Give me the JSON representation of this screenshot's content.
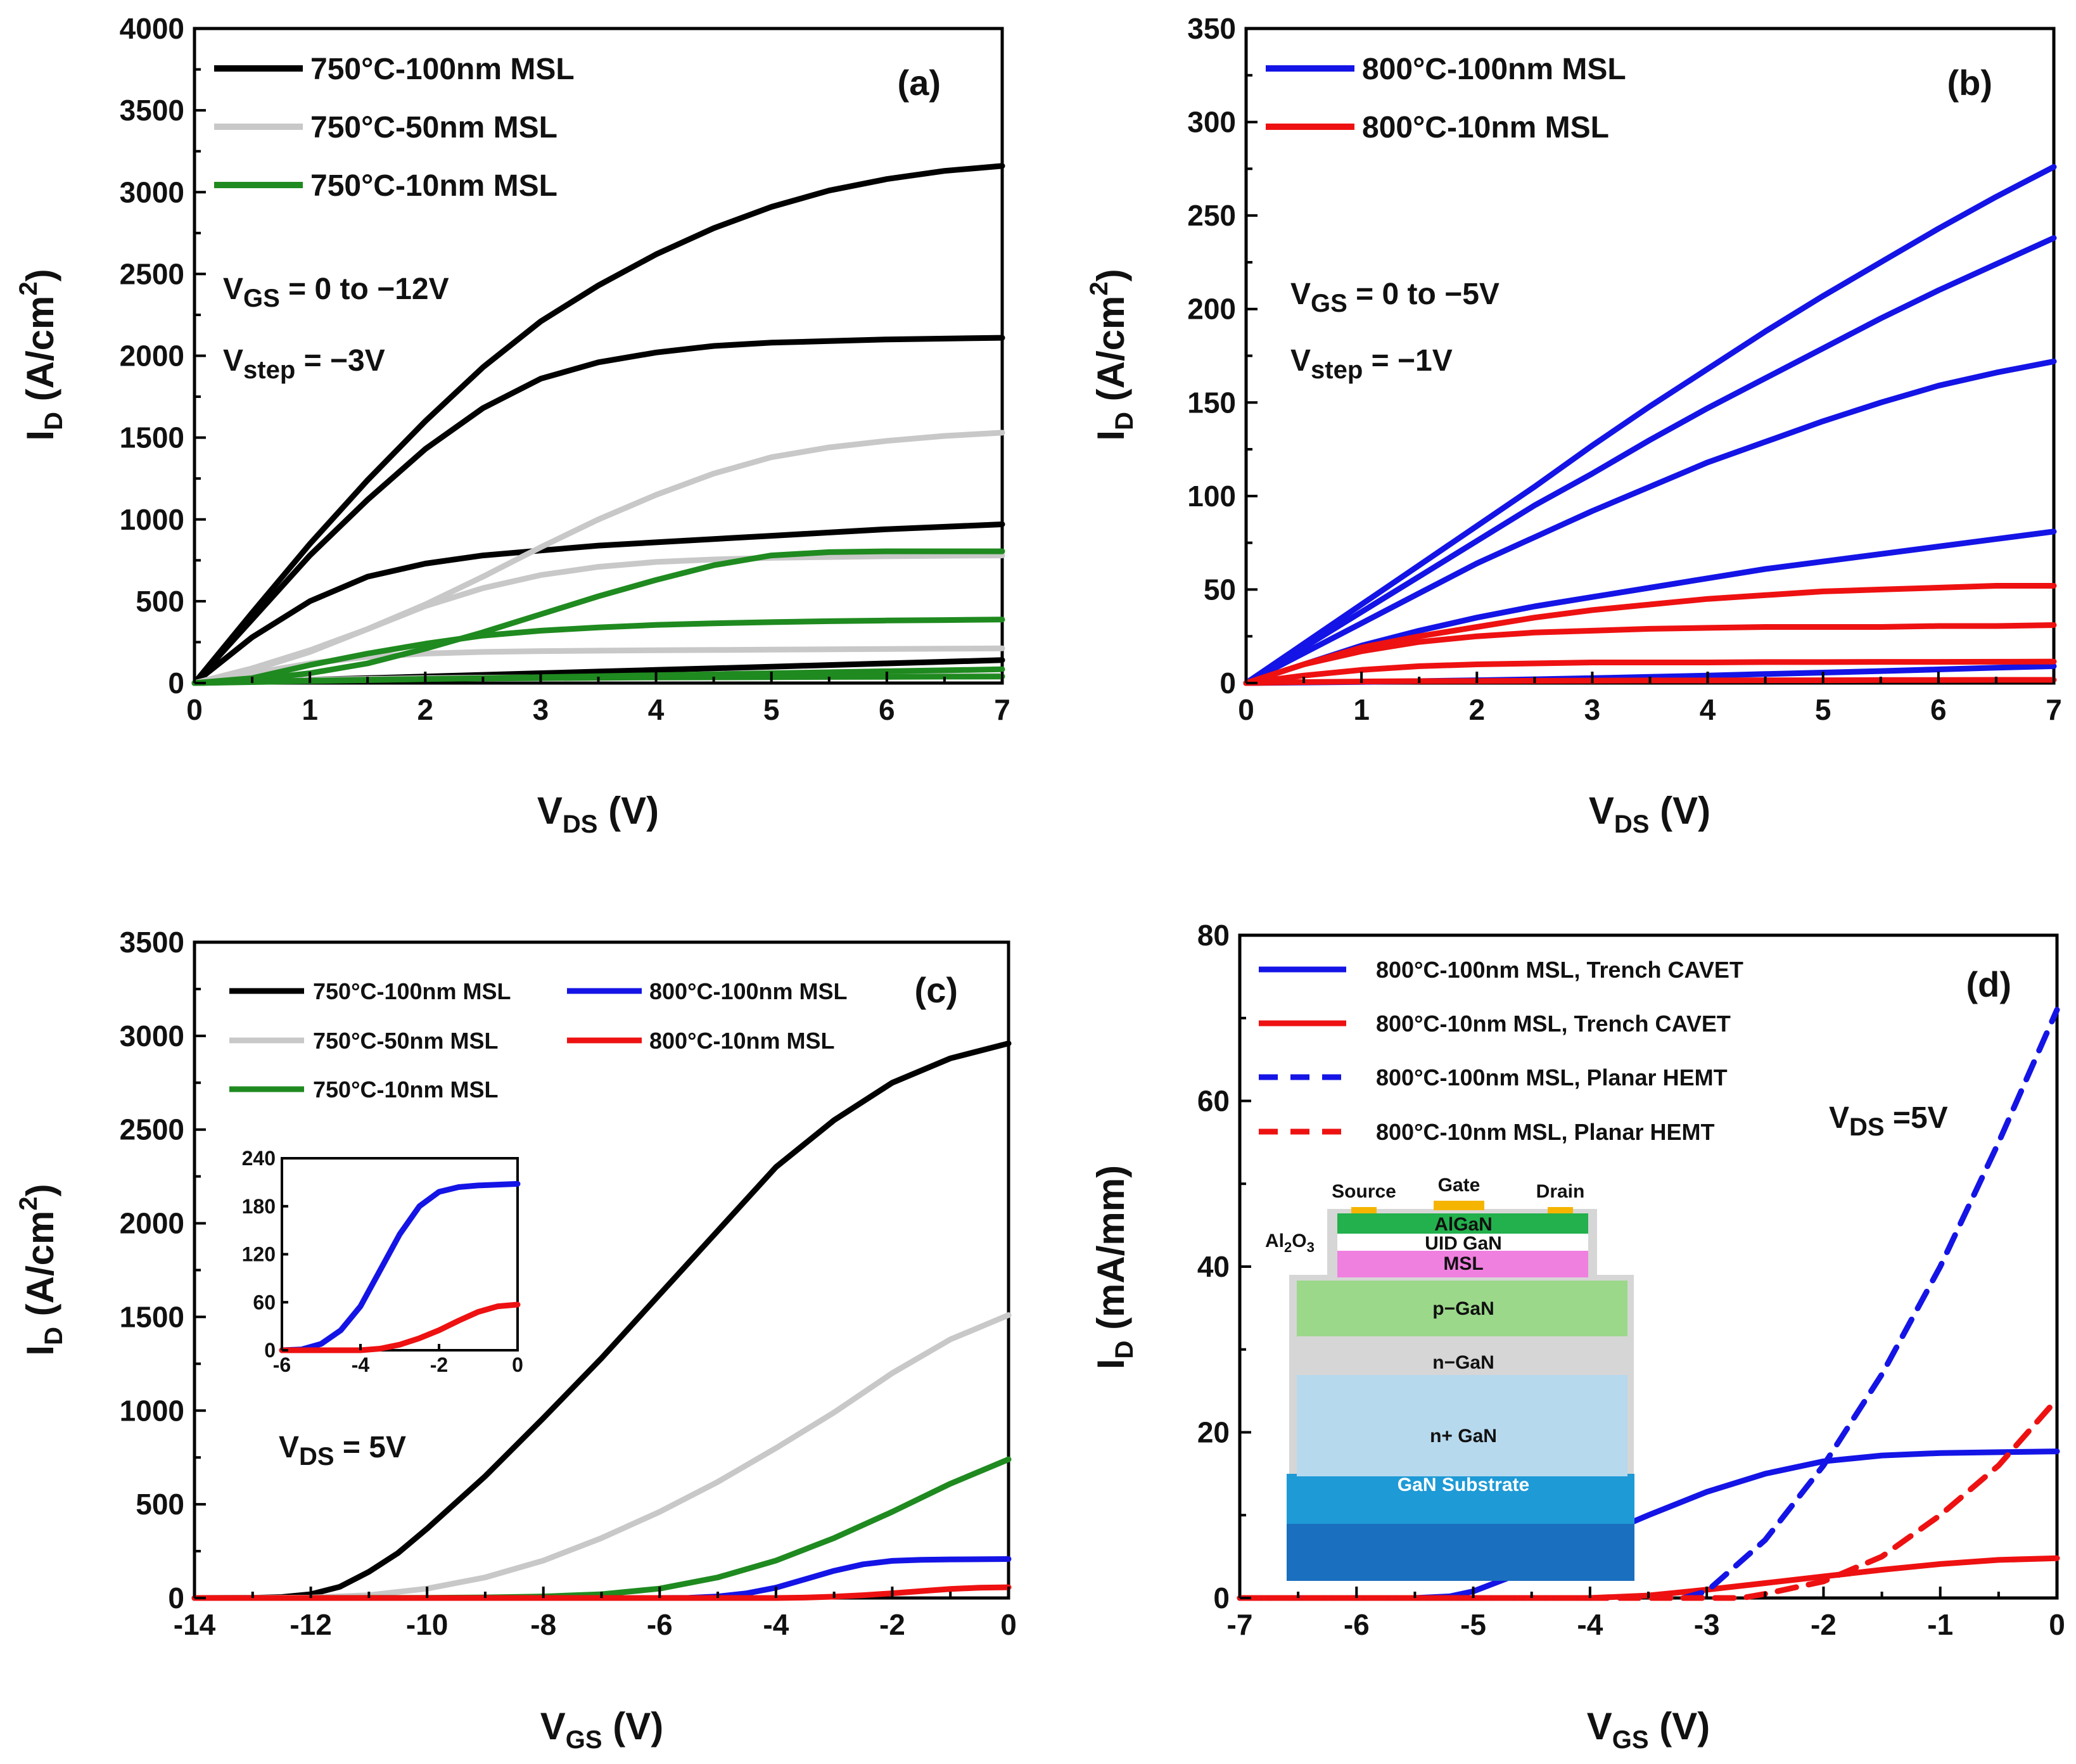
{
  "chart_data": [
    {
      "panel": "(a)",
      "type": "line",
      "xlabel_main": "V",
      "xlabel_sub": "DS",
      "xlabel_unit": " (V)",
      "ylabel_main": "I",
      "ylabel_sub": "D",
      "ylabel_unit": " (A/cm",
      "ylabel_sup": "2",
      "ylabel_close": ")",
      "xlim": [
        0,
        7
      ],
      "ylim": [
        0,
        4000
      ],
      "xticks": [
        "0",
        "1",
        "2",
        "3",
        "4",
        "5",
        "6",
        "7"
      ],
      "yticks": [
        "0",
        "500",
        "1000",
        "1500",
        "2000",
        "2500",
        "3000",
        "3500",
        "4000"
      ],
      "legend": [
        "750°C-100nm MSL",
        "750°C-50nm MSL",
        "750°C-10nm MSL"
      ],
      "annotation_lines": [
        {
          "main": "V",
          "sub": "GS",
          "rest": " = 0 to −12V"
        },
        {
          "main": "V",
          "sub": "step",
          "rest": " = −3V"
        }
      ],
      "series": [
        {
          "name": "750°C-100nm MSL",
          "color": "#000000",
          "style": "solid",
          "x": [
            0,
            0.5,
            1,
            1.5,
            2,
            2.5,
            3,
            3.5,
            4,
            4.5,
            5,
            5.5,
            6,
            6.5,
            7
          ],
          "values": [
            [
              0,
              430,
              850,
              1240,
              1600,
              1930,
              2210,
              2430,
              2620,
              2780,
              2910,
              3010,
              3080,
              3130,
              3160
            ],
            [
              0,
              390,
              780,
              1120,
              1430,
              1680,
              1860,
              1960,
              2020,
              2060,
              2080,
              2090,
              2100,
              2105,
              2110
            ],
            [
              0,
              280,
              500,
              650,
              730,
              780,
              810,
              840,
              860,
              880,
              900,
              920,
              940,
              955,
              970
            ],
            [
              0,
              10,
              20,
              30,
              40,
              50,
              60,
              70,
              80,
              90,
              100,
              110,
              120,
              130,
              140
            ]
          ]
        },
        {
          "name": "750°C-50nm MSL",
          "color": "#c8c8c8",
          "style": "solid",
          "x": [
            0,
            0.5,
            1,
            1.5,
            2,
            2.5,
            3,
            3.5,
            4,
            4.5,
            5,
            5.5,
            6,
            6.5,
            7
          ],
          "values": [
            [
              0,
              90,
              200,
              330,
              480,
              650,
              830,
              1000,
              1150,
              1280,
              1380,
              1440,
              1480,
              1510,
              1530
            ],
            [
              0,
              80,
              190,
              330,
              470,
              580,
              660,
              710,
              740,
              755,
              765,
              770,
              775,
              778,
              780
            ],
            [
              0,
              60,
              120,
              160,
              180,
              190,
              195,
              198,
              200,
              202,
              204,
              206,
              208,
              210,
              212
            ],
            [
              0,
              10,
              20,
              25,
              30,
              33,
              35,
              37,
              38,
              39,
              40,
              41,
              42,
              43,
              44
            ]
          ]
        },
        {
          "name": "750°C-10nm MSL",
          "color": "#1f8a1f",
          "style": "solid",
          "x": [
            0,
            0.5,
            1,
            1.5,
            2,
            2.5,
            3,
            3.5,
            4,
            4.5,
            5,
            5.5,
            6,
            6.5,
            7
          ],
          "values": [
            [
              0,
              20,
              60,
              120,
              210,
              310,
              420,
              530,
              630,
              720,
              780,
              800,
              805,
              805,
              805
            ],
            [
              0,
              30,
              110,
              180,
              240,
              290,
              320,
              340,
              355,
              365,
              372,
              378,
              382,
              385,
              388
            ],
            [
              0,
              8,
              15,
              20,
              25,
              28,
              30,
              32,
              34,
              35,
              36,
              37,
              38,
              39,
              40
            ],
            [
              0,
              6,
              12,
              18,
              24,
              30,
              36,
              42,
              48,
              54,
              60,
              66,
              72,
              78,
              84
            ]
          ]
        }
      ]
    },
    {
      "panel": "(b)",
      "type": "line",
      "xlabel_main": "V",
      "xlabel_sub": "DS",
      "xlabel_unit": " (V)",
      "ylabel_main": "I",
      "ylabel_sub": "D",
      "ylabel_unit": " (A/cm",
      "ylabel_sup": "2",
      "ylabel_close": ")",
      "xlim": [
        0,
        7
      ],
      "ylim": [
        0,
        350
      ],
      "xticks": [
        "0",
        "1",
        "2",
        "3",
        "4",
        "5",
        "6",
        "7"
      ],
      "yticks": [
        "0",
        "50",
        "100",
        "150",
        "200",
        "250",
        "300",
        "350"
      ],
      "legend": [
        "800°C-100nm MSL",
        "800°C-10nm MSL"
      ],
      "annotation_lines": [
        {
          "main": "V",
          "sub": "GS",
          "rest": " = 0 to −5V"
        },
        {
          "main": "V",
          "sub": "step",
          "rest": " = −1V"
        }
      ],
      "series": [
        {
          "name": "800°C-100nm MSL",
          "color": "#1414e6",
          "style": "solid",
          "x": [
            0,
            0.5,
            1,
            1.5,
            2,
            2.5,
            3,
            3.5,
            4,
            4.5,
            5,
            5.5,
            6,
            6.5,
            7
          ],
          "values": [
            [
              0,
              21,
              42,
              63,
              84,
              105,
              127,
              148,
              168,
              188,
              207,
              225,
              243,
              260,
              276
            ],
            [
              0,
              19,
              38,
              57,
              76,
              95,
              112,
              130,
              147,
              163,
              179,
              195,
              210,
              224,
              238
            ],
            [
              0,
              16,
              32,
              48,
              64,
              78,
              92,
              105,
              118,
              129,
              140,
              150,
              159,
              166,
              172
            ],
            [
              0,
              10,
              20,
              28,
              35,
              41,
              46,
              51,
              56,
              61,
              65,
              69,
              73,
              77,
              81
            ],
            [
              0,
              0.3,
              0.6,
              1,
              1.5,
              2,
              2.6,
              3.3,
              4,
              4.8,
              5.6,
              6.4,
              7.3,
              8.2,
              9
            ]
          ]
        },
        {
          "name": "800°C-10nm MSL",
          "color": "#ee1111",
          "style": "solid",
          "x": [
            0,
            0.5,
            1,
            1.5,
            2,
            2.5,
            3,
            3.5,
            4,
            4.5,
            5,
            5.5,
            6,
            6.5,
            7
          ],
          "values": [
            [
              0,
              10,
              19,
              25,
              30,
              35,
              39,
              42,
              45,
              47,
              49,
              50,
              51,
              52,
              52
            ],
            [
              0,
              10,
              17,
              22,
              25,
              27,
              28,
              29,
              29.5,
              30,
              30,
              30,
              30.5,
              30.5,
              31
            ],
            [
              0,
              4,
              7,
              9,
              10,
              10.5,
              11,
              11,
              11,
              11.2,
              11.2,
              11.3,
              11.3,
              11.4,
              11.5
            ],
            [
              0,
              0.5,
              0.8,
              1,
              1.1,
              1.2,
              1.3,
              1.4,
              1.4,
              1.5,
              1.5,
              1.6,
              1.6,
              1.7,
              1.7
            ]
          ]
        }
      ]
    },
    {
      "panel": "(c)",
      "type": "line",
      "xlabel_main": "V",
      "xlabel_sub": "GS",
      "xlabel_unit": " (V)",
      "ylabel_main": "I",
      "ylabel_sub": "D",
      "ylabel_unit": " (A/cm",
      "ylabel_sup": "2",
      "ylabel_close": ")",
      "xlim": [
        -14,
        0
      ],
      "ylim": [
        0,
        3500
      ],
      "xticks": [
        "-14",
        "-12",
        "-10",
        "-8",
        "-6",
        "-4",
        "-2",
        "0"
      ],
      "yticks": [
        "0",
        "500",
        "1000",
        "1500",
        "2000",
        "2500",
        "3000",
        "3500"
      ],
      "legend": [
        "750°C-100nm MSL",
        "750°C-50nm MSL",
        "750°C-10nm MSL",
        "800°C-100nm MSL",
        "800°C-10nm MSL"
      ],
      "annotation_lines": [
        {
          "main": "V",
          "sub": "DS",
          "rest": " = 5V"
        }
      ],
      "series": [
        {
          "name": "750°C-100nm MSL",
          "color": "#000000",
          "style": "solid",
          "x": [
            -14,
            -13,
            -12.5,
            -12,
            -11.5,
            -11,
            -10.5,
            -10,
            -9,
            -8,
            -7,
            -6,
            -5,
            -4,
            -3,
            -2,
            -1,
            0
          ],
          "values": [
            0,
            1,
            5,
            20,
            60,
            140,
            240,
            370,
            650,
            960,
            1280,
            1620,
            1960,
            2300,
            2550,
            2750,
            2880,
            2960
          ]
        },
        {
          "name": "750°C-50nm MSL",
          "color": "#c8c8c8",
          "style": "solid",
          "x": [
            -14,
            -12,
            -11,
            -10,
            -9,
            -8,
            -7,
            -6,
            -5,
            -4,
            -3,
            -2,
            -1,
            0
          ],
          "values": [
            0,
            2,
            15,
            50,
            110,
            200,
            320,
            460,
            620,
            800,
            990,
            1200,
            1380,
            1510
          ]
        },
        {
          "name": "750°C-10nm MSL",
          "color": "#1f8a1f",
          "style": "solid",
          "x": [
            -14,
            -10,
            -9,
            -8,
            -7,
            -6,
            -5,
            -4,
            -3,
            -2,
            -1,
            0
          ],
          "values": [
            0,
            1,
            3,
            8,
            20,
            50,
            110,
            200,
            320,
            460,
            610,
            740
          ]
        },
        {
          "name": "800°C-100nm MSL",
          "color": "#1414e6",
          "style": "solid",
          "x": [
            -14,
            -6,
            -5.5,
            -5,
            -4.5,
            -4,
            -3.5,
            -3,
            -2.5,
            -2,
            -1.5,
            -1,
            0
          ],
          "values": [
            0,
            0,
            1,
            8,
            25,
            55,
            100,
            145,
            180,
            198,
            204,
            206,
            208
          ]
        },
        {
          "name": "800°C-10nm MSL",
          "color": "#ee1111",
          "style": "solid",
          "x": [
            -14,
            -4,
            -3.5,
            -3,
            -2.5,
            -2,
            -1.5,
            -1,
            -0.5,
            0
          ],
          "values": [
            0,
            0,
            2,
            7,
            15,
            25,
            37,
            48,
            55,
            57
          ]
        }
      ],
      "inset": {
        "xlim": [
          -6,
          0
        ],
        "ylim": [
          0,
          240
        ],
        "xticks": [
          "-6",
          "-4",
          "-2",
          "0"
        ],
        "yticks": [
          "0",
          "60",
          "120",
          "180",
          "240"
        ]
      }
    },
    {
      "panel": "(d)",
      "type": "line",
      "xlabel_main": "V",
      "xlabel_sub": "GS",
      "xlabel_unit": " (V)",
      "ylabel_main": "I",
      "ylabel_sub": "D",
      "ylabel_unit": " (mA/mm)",
      "xlim": [
        -7,
        0
      ],
      "ylim": [
        0,
        80
      ],
      "xticks": [
        "-7",
        "-6",
        "-5",
        "-4",
        "-3",
        "-2",
        "-1",
        "0"
      ],
      "yticks": [
        "0",
        "20",
        "40",
        "60",
        "80"
      ],
      "legend": [
        "800°C-100nm MSL, Trench CAVET",
        "800°C-10nm MSL, Trench CAVET",
        "800°C-100nm MSL, Planar HEMT",
        "800°C-10nm MSL, Planar HEMT"
      ],
      "annotation_lines": [
        {
          "main": "V",
          "sub": "DS",
          "rest": " =5V"
        }
      ],
      "series": [
        {
          "name": "800°C-100nm MSL, Trench CAVET",
          "color": "#1414e6",
          "style": "solid",
          "x": [
            -7,
            -5.5,
            -5.2,
            -5,
            -4.5,
            -4,
            -3.5,
            -3,
            -2.5,
            -2,
            -1.5,
            -1,
            -0.5,
            0
          ],
          "values": [
            0,
            0,
            0.2,
            0.8,
            3.5,
            7,
            10,
            12.8,
            15,
            16.5,
            17.2,
            17.5,
            17.6,
            17.7
          ]
        },
        {
          "name": "800°C-10nm MSL, Trench CAVET",
          "color": "#ee1111",
          "style": "solid",
          "x": [
            -7,
            -4,
            -3.5,
            -3,
            -2.5,
            -2,
            -1.5,
            -1,
            -0.5,
            0
          ],
          "values": [
            0,
            0,
            0.3,
            1,
            1.8,
            2.6,
            3.4,
            4.1,
            4.6,
            4.8
          ]
        },
        {
          "name": "800°C-100nm MSL, Planar HEMT",
          "color": "#1414e6",
          "style": "dashed",
          "x": [
            -7,
            -3.2,
            -3,
            -2.5,
            -2,
            -1.5,
            -1,
            -0.5,
            0
          ],
          "values": [
            0,
            0,
            0.8,
            7,
            16,
            27,
            40,
            55,
            71
          ]
        },
        {
          "name": "800°C-10nm MSL, Planar HEMT",
          "color": "#ee1111",
          "style": "dashed",
          "x": [
            -7,
            -2.7,
            -2.5,
            -2,
            -1.5,
            -1,
            -0.5,
            0
          ],
          "values": [
            0,
            0,
            0.5,
            2,
            5,
            10,
            16,
            24
          ]
        }
      ],
      "device_labels": {
        "source": "Source",
        "gate": "Gate",
        "drain": "Drain",
        "al2o3_main": "Al",
        "al2o3_sub1": "2",
        "al2o3_o": "O",
        "al2o3_sub2": "3",
        "algan": "AlGaN",
        "uid_gan": "UID GaN",
        "msl": "MSL",
        "p_gan": "p−GaN",
        "n_gan": "n−GaN",
        "n_plus_gan": "n+ GaN",
        "substrate": "GaN Substrate"
      },
      "layer_colors": {
        "contact": "#f5b400",
        "algan": "#22b14c",
        "uid": "#ffffff",
        "msl": "#f080e0",
        "p_gan": "#9bd88a",
        "n_gan": "#b7d9ee",
        "n_plus_gan": "#1e9ad6",
        "substrate": "#1a6fbe",
        "oxide": "#d6d6d6"
      }
    }
  ]
}
